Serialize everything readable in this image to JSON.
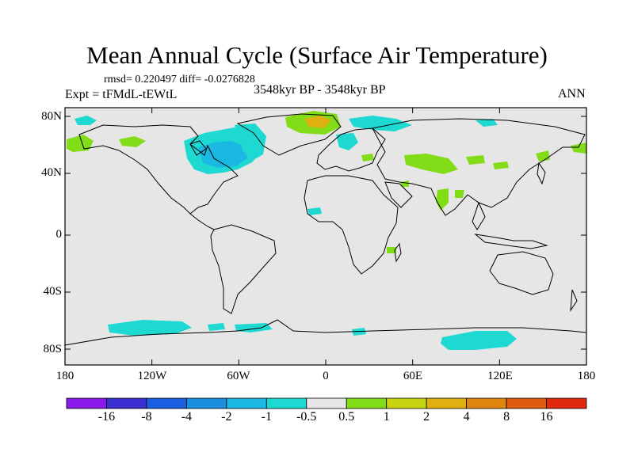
{
  "title": "Mean Annual Cycle (Surface Air Temperature)",
  "stats": "rmsd= 0.220497 diff= -0.0276828",
  "experiment": "Expt = tFMdL-tEWtL",
  "period": "3548kyr BP - 3548kyr BP",
  "season": "ANN",
  "axes": {
    "y_ticks": [
      "80N",
      "40N",
      "0",
      "40S",
      "80S"
    ],
    "x_ticks": [
      "180",
      "120W",
      "60W",
      "0",
      "60E",
      "120E",
      "180"
    ]
  },
  "colorbar": {
    "labels": [
      "-16",
      "-8",
      "-4",
      "-2",
      "-1",
      "-0.5",
      "0.5",
      "1",
      "2",
      "4",
      "8",
      "16"
    ],
    "colors": [
      "#8a1aea",
      "#3a2fd0",
      "#1a5ee2",
      "#1c8ee0",
      "#1ab8e2",
      "#1ed8d2",
      "#e6e6e6",
      "#82dc18",
      "#c8d410",
      "#e0b010",
      "#e08610",
      "#e05a10",
      "#e02a10"
    ]
  },
  "map_colors": {
    "background": "#e6e6e6",
    "cool": "#1ed8d2",
    "cooler": "#1ab8e2",
    "warm": "#82dc18",
    "warmer": "#c8d410",
    "hot": "#e0b010",
    "coast": "#000000"
  }
}
